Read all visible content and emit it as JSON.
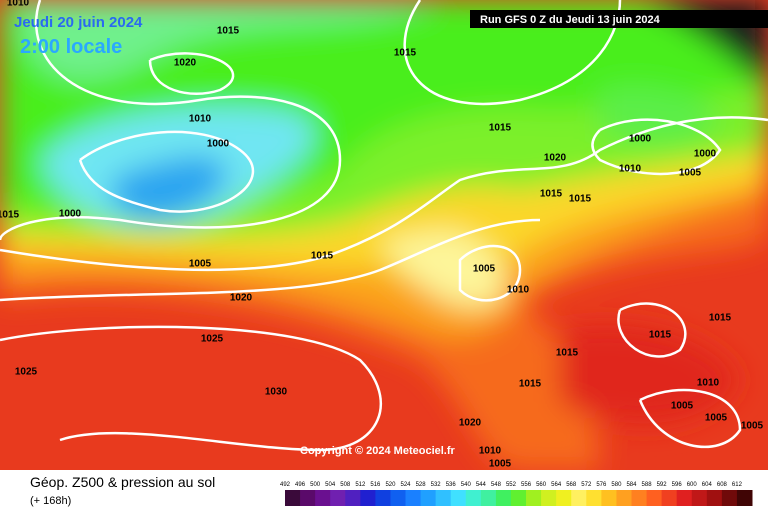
{
  "header": {
    "date": "Jeudi 20 juin 2024",
    "time": "2:00 locale",
    "run": "Run GFS 0 Z du Jeudi 13 juin 2024"
  },
  "copyright": "Copyright © 2024 Meteociel.fr",
  "footer": {
    "title": "Géop. Z500 & pression au sol",
    "lead": "(+ 168h)"
  },
  "isobar_labels": [
    "1010",
    "1015",
    "1020",
    "1015",
    "1010",
    "1000",
    "1015",
    "1000",
    "1000",
    "1020",
    "1010",
    "1005",
    "1015",
    "1000",
    "1015",
    "1015",
    "1005",
    "1015",
    "1005",
    "1020",
    "1010",
    "1015",
    "1025",
    "1015",
    "1015",
    "1025",
    "1015",
    "1010",
    "1030",
    "1005",
    "1005",
    "1005",
    "1020",
    "1010",
    "1005"
  ],
  "colorbar": [
    "492",
    "496",
    "500",
    "504",
    "508",
    "512",
    "516",
    "520",
    "524",
    "528",
    "532",
    "536",
    "540",
    "544",
    "548",
    "552",
    "556",
    "560",
    "564",
    "568",
    "572",
    "576",
    "580",
    "584",
    "588",
    "592",
    "596",
    "600",
    "604",
    "608",
    "612"
  ]
}
